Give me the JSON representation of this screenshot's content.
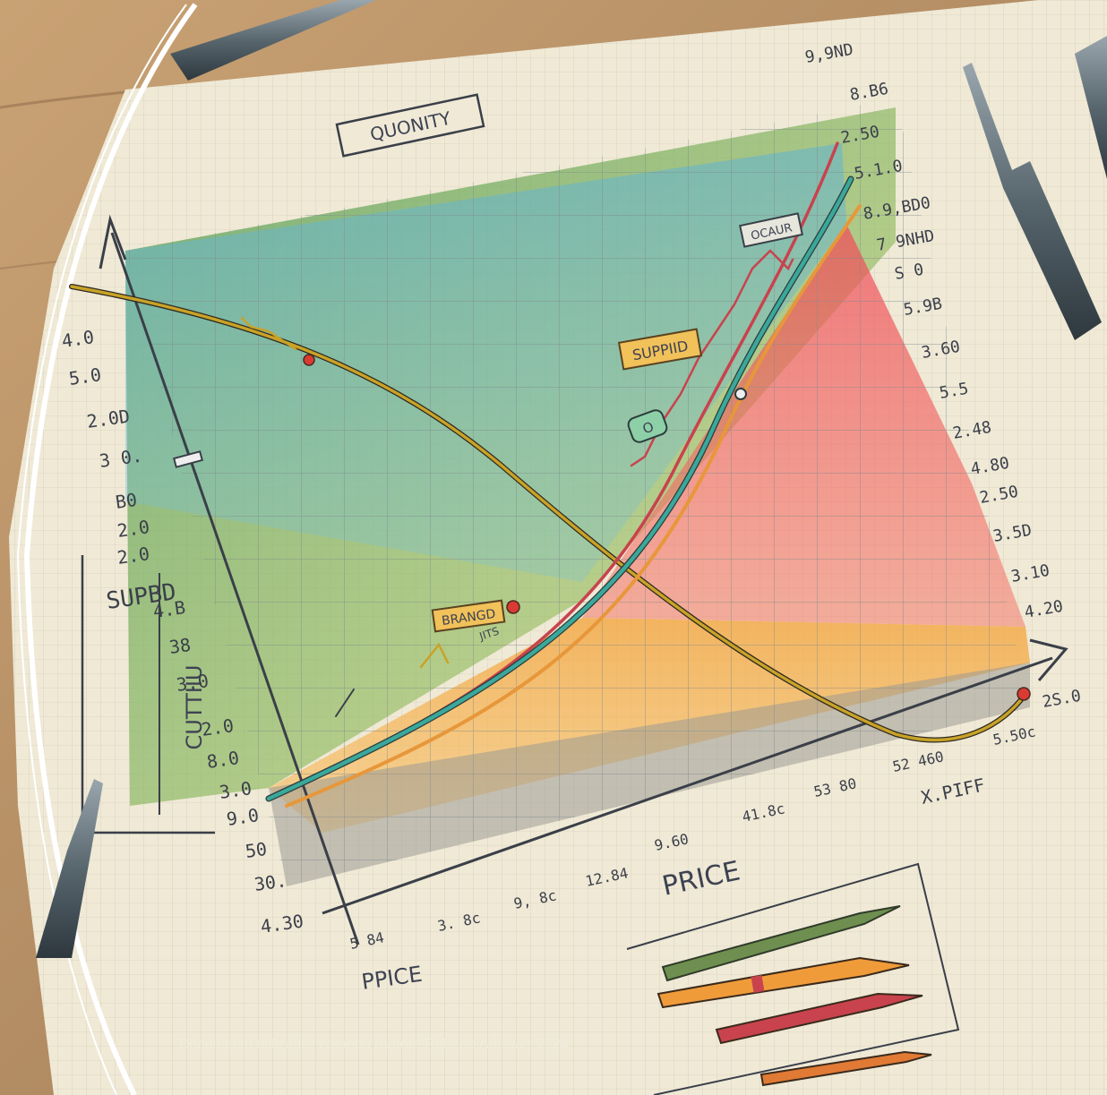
{
  "labels": {
    "top_title": "QUONITY",
    "price_bottom_center": "PRICE",
    "price_bottom_left": "PPICE",
    "supply_left": "SUPBD",
    "vertical_left": "CUTTIIU",
    "x_right": "X.PIFF",
    "tag_supplied": "SUPPIID",
    "tag_brand": "BRANGD",
    "tag_ocaur": "OCAUR",
    "tag_jits": "JITS",
    "tag_ci": "O"
  },
  "left_ticks": [
    "4.0",
    "5.0",
    "2.0D",
    "3 0.",
    "B0",
    "2.0",
    "2.0",
    "4.B",
    "38",
    "3.0",
    "2.0",
    "8.0",
    "3.0",
    "9.0",
    "50",
    "30.",
    "4.30"
  ],
  "right_ticks": [
    "9,9ND",
    "8.B6",
    "2.50",
    "5.1.0",
    "8.9,BD0",
    "7 9NHD",
    "S 0",
    "5.9B",
    "3.60",
    "5.5",
    "2.48",
    "4.80",
    "2.50",
    "3.5D",
    "3.10",
    "4.20",
    "2S.0"
  ],
  "bottom_ticks": [
    "5 84",
    "3. 8c",
    "9, 8c",
    "12.84",
    "9.60",
    "41.8c",
    "53 80",
    "52 460",
    "5.50c"
  ],
  "caption": "Documento utilizabile cotando l'autore Roberto Adrower 2024",
  "colors": {
    "demand_curve": "#c9a227",
    "supply_red": "#c8434d",
    "supply_teal": "#3aa89a",
    "supply_orange": "#e7973a",
    "area_green": "#8fc06b",
    "area_blue": "#7cc0d8",
    "area_red": "#ef6b6b",
    "area_orange": "#f4b35a"
  }
}
